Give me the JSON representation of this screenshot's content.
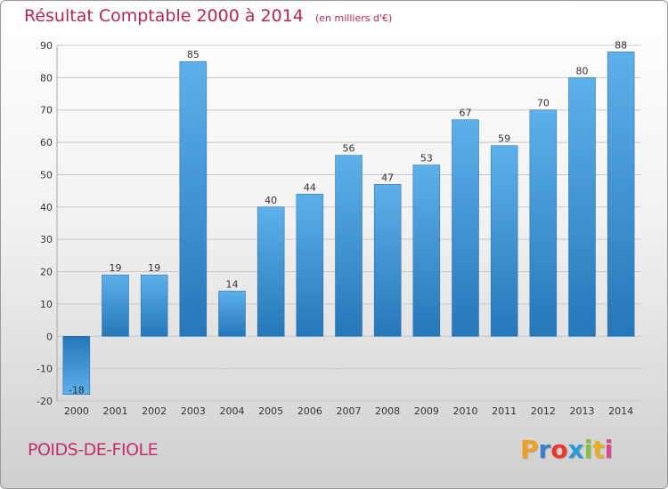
{
  "header": {
    "title": "Résultat Comptable 2000 à 2014",
    "subtitle": "(en milliers d'€)"
  },
  "footer": {
    "commune": "POIDS-DE-FIOLE"
  },
  "logo": {
    "text": "Proxiti",
    "letters": [
      {
        "char": "P",
        "color": "#f0a020"
      },
      {
        "char": "r",
        "color": "#3a7fd0"
      },
      {
        "char": "o",
        "color": "#e8392a"
      },
      {
        "char": "x",
        "color": "#2a9ad6"
      },
      {
        "char": "i",
        "color": "#86c03c"
      },
      {
        "char": "t",
        "color": "#e8b020"
      },
      {
        "char": "i",
        "color": "#e04a8a"
      }
    ]
  },
  "chart_data": {
    "type": "bar",
    "title": "Résultat Comptable 2000 à 2014",
    "subtitle": "(en milliers d'€)",
    "categories": [
      "2000",
      "2001",
      "2002",
      "2003",
      "2004",
      "2005",
      "2006",
      "2007",
      "2008",
      "2009",
      "2010",
      "2011",
      "2012",
      "2013",
      "2014"
    ],
    "values": [
      -18,
      19,
      19,
      85,
      14,
      40,
      44,
      56,
      47,
      53,
      67,
      59,
      70,
      80,
      88
    ],
    "ylim": [
      -20,
      90
    ],
    "yticks": [
      -20,
      -10,
      0,
      10,
      20,
      30,
      40,
      50,
      60,
      70,
      80,
      90
    ],
    "grid": true,
    "colors": {
      "bar_light": "#5eb0ea",
      "bar_dark": "#2677b8",
      "grid": "#c8c8c8",
      "axis_text": "#333333"
    }
  }
}
